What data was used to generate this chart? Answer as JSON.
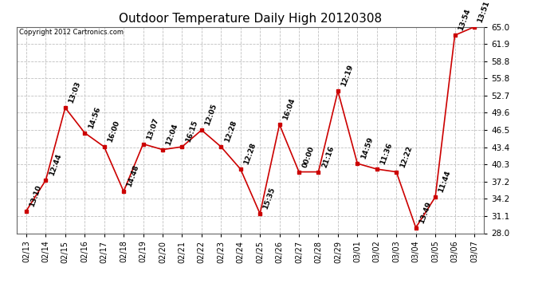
{
  "title": "Outdoor Temperature Daily High 20120308",
  "copyright": "Copyright 2012 Cartronics.com",
  "x_labels": [
    "02/13",
    "02/14",
    "02/15",
    "02/16",
    "02/17",
    "02/18",
    "02/19",
    "02/20",
    "02/21",
    "02/22",
    "02/23",
    "02/24",
    "02/25",
    "02/26",
    "02/27",
    "02/28",
    "02/29",
    "03/01",
    "03/02",
    "03/03",
    "03/04",
    "03/05",
    "03/06",
    "03/07"
  ],
  "y_values": [
    32.0,
    37.5,
    50.5,
    46.0,
    43.5,
    35.5,
    44.0,
    43.0,
    43.5,
    46.5,
    43.5,
    39.5,
    31.5,
    47.5,
    39.0,
    39.0,
    53.5,
    40.5,
    39.5,
    39.0,
    29.0,
    34.5,
    63.5,
    65.0
  ],
  "time_labels": [
    "13:10",
    "12:44",
    "13:03",
    "14:56",
    "16:00",
    "14:48",
    "13:07",
    "12:04",
    "16:15",
    "12:05",
    "12:28",
    "12:28",
    "15:35",
    "16:04",
    "00:00",
    "21:16",
    "12:19",
    "14:59",
    "11:36",
    "12:22",
    "13:49",
    "11:44",
    "13:54",
    "13:51"
  ],
  "ylim": [
    28.0,
    65.0
  ],
  "yticks": [
    28.0,
    31.1,
    34.2,
    37.2,
    40.3,
    43.4,
    46.5,
    49.6,
    52.7,
    55.8,
    58.8,
    61.9,
    65.0
  ],
  "line_color": "#cc0000",
  "marker_color": "#cc0000",
  "bg_color": "#ffffff",
  "grid_color": "#c0c0c0",
  "title_fontsize": 11,
  "annotation_fontsize": 6.5,
  "tick_fontsize": 7.5,
  "xlabel_fontsize": 7
}
